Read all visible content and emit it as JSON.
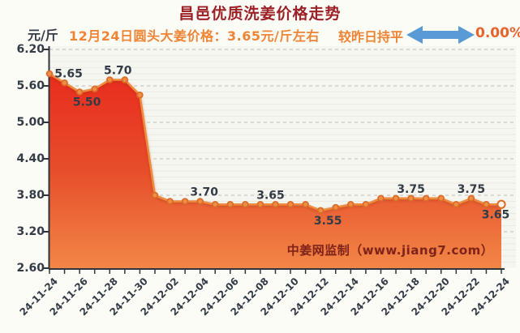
{
  "header": {
    "title": "昌邑优质洗姜价格走势",
    "unit_label": "元/斤",
    "subtitle": "12月24日圆头大姜价格：3.65元/斤左右",
    "trend_label": "较昨日持平",
    "trend_percent": "0.00%"
  },
  "watermark": "中姜网监制（www.jiang7.com）",
  "colors": {
    "title_red": "#9c2127",
    "subtitle_orange": "#ef8435",
    "percent_orange": "#e8622c",
    "arrow_blue": "#5b9bd5",
    "axis_text": "#333b46",
    "axis_line": "#30343b",
    "grid_minor": "#e9eae2",
    "grid_major_dash": "#bcbdb5",
    "plot_bg": "#f5f6ef",
    "line": "#ee8b3c",
    "marker_stroke": "#db6b28",
    "marker_fill": "#ef8f45",
    "last_marker_fill": "#fdf5ea",
    "area_top": "#e92c1e",
    "area_mid": "#e74e2b",
    "area_bottom": "#f28646",
    "watermark": "#7e231a"
  },
  "chart_data": {
    "type": "area",
    "title": "昌邑优质洗姜价格走势",
    "xlabel": "",
    "ylabel": "元/斤",
    "ylim": [
      2.6,
      6.2
    ],
    "y_ticks": [
      "6.20",
      "5.60",
      "5.00",
      "4.40",
      "3.80",
      "3.20",
      "2.60"
    ],
    "grid": "horizontal major dashed + minor solid",
    "legend": "none",
    "x": [
      "24-11-24",
      "24-11-25",
      "24-11-26",
      "24-11-27",
      "24-11-28",
      "24-11-29",
      "24-11-30",
      "24-12-01",
      "24-12-02",
      "24-12-03",
      "24-12-04",
      "24-12-05",
      "24-12-06",
      "24-12-07",
      "24-12-08",
      "24-12-09",
      "24-12-10",
      "24-12-11",
      "24-12-12",
      "24-12-13",
      "24-12-14",
      "24-12-15",
      "24-12-16",
      "24-12-17",
      "24-12-18",
      "24-12-19",
      "24-12-20",
      "24-12-21",
      "24-12-22",
      "24-12-23",
      "24-12-24"
    ],
    "x_tick_labels": [
      "24-11-24",
      "24-11-26",
      "24-11-28",
      "24-11-30",
      "24-12-02",
      "24-12-04",
      "24-12-06",
      "24-12-08",
      "24-12-10",
      "24-12-12",
      "24-12-14",
      "24-12-16",
      "24-12-18",
      "24-12-20",
      "24-12-22",
      "24-12-24"
    ],
    "values": [
      5.8,
      5.65,
      5.5,
      5.55,
      5.7,
      5.7,
      5.45,
      3.8,
      3.7,
      3.7,
      3.7,
      3.65,
      3.65,
      3.65,
      3.65,
      3.65,
      3.65,
      3.65,
      3.55,
      3.6,
      3.65,
      3.65,
      3.75,
      3.75,
      3.75,
      3.75,
      3.75,
      3.65,
      3.75,
      3.65,
      3.65
    ],
    "point_labels": [
      {
        "index": 1,
        "text": "5.65",
        "pos": "top",
        "dx": 5
      },
      {
        "index": 2,
        "text": "5.50",
        "pos": "bottom",
        "dx": 9
      },
      {
        "index": 4,
        "text": "5.70",
        "pos": "top",
        "dx": 10
      },
      {
        "index": 10,
        "text": "3.70",
        "pos": "top",
        "dx": 5
      },
      {
        "index": 15,
        "text": "3.65",
        "pos": "top",
        "dx": -6
      },
      {
        "index": 18,
        "text": "3.55",
        "pos": "bottom",
        "dx": 9
      },
      {
        "index": 24,
        "text": "3.75",
        "pos": "top",
        "dx": 0
      },
      {
        "index": 28,
        "text": "3.75",
        "pos": "top",
        "dx": 0
      },
      {
        "index": 30,
        "text": "3.65",
        "pos": "bottom",
        "dx": -7
      }
    ]
  }
}
